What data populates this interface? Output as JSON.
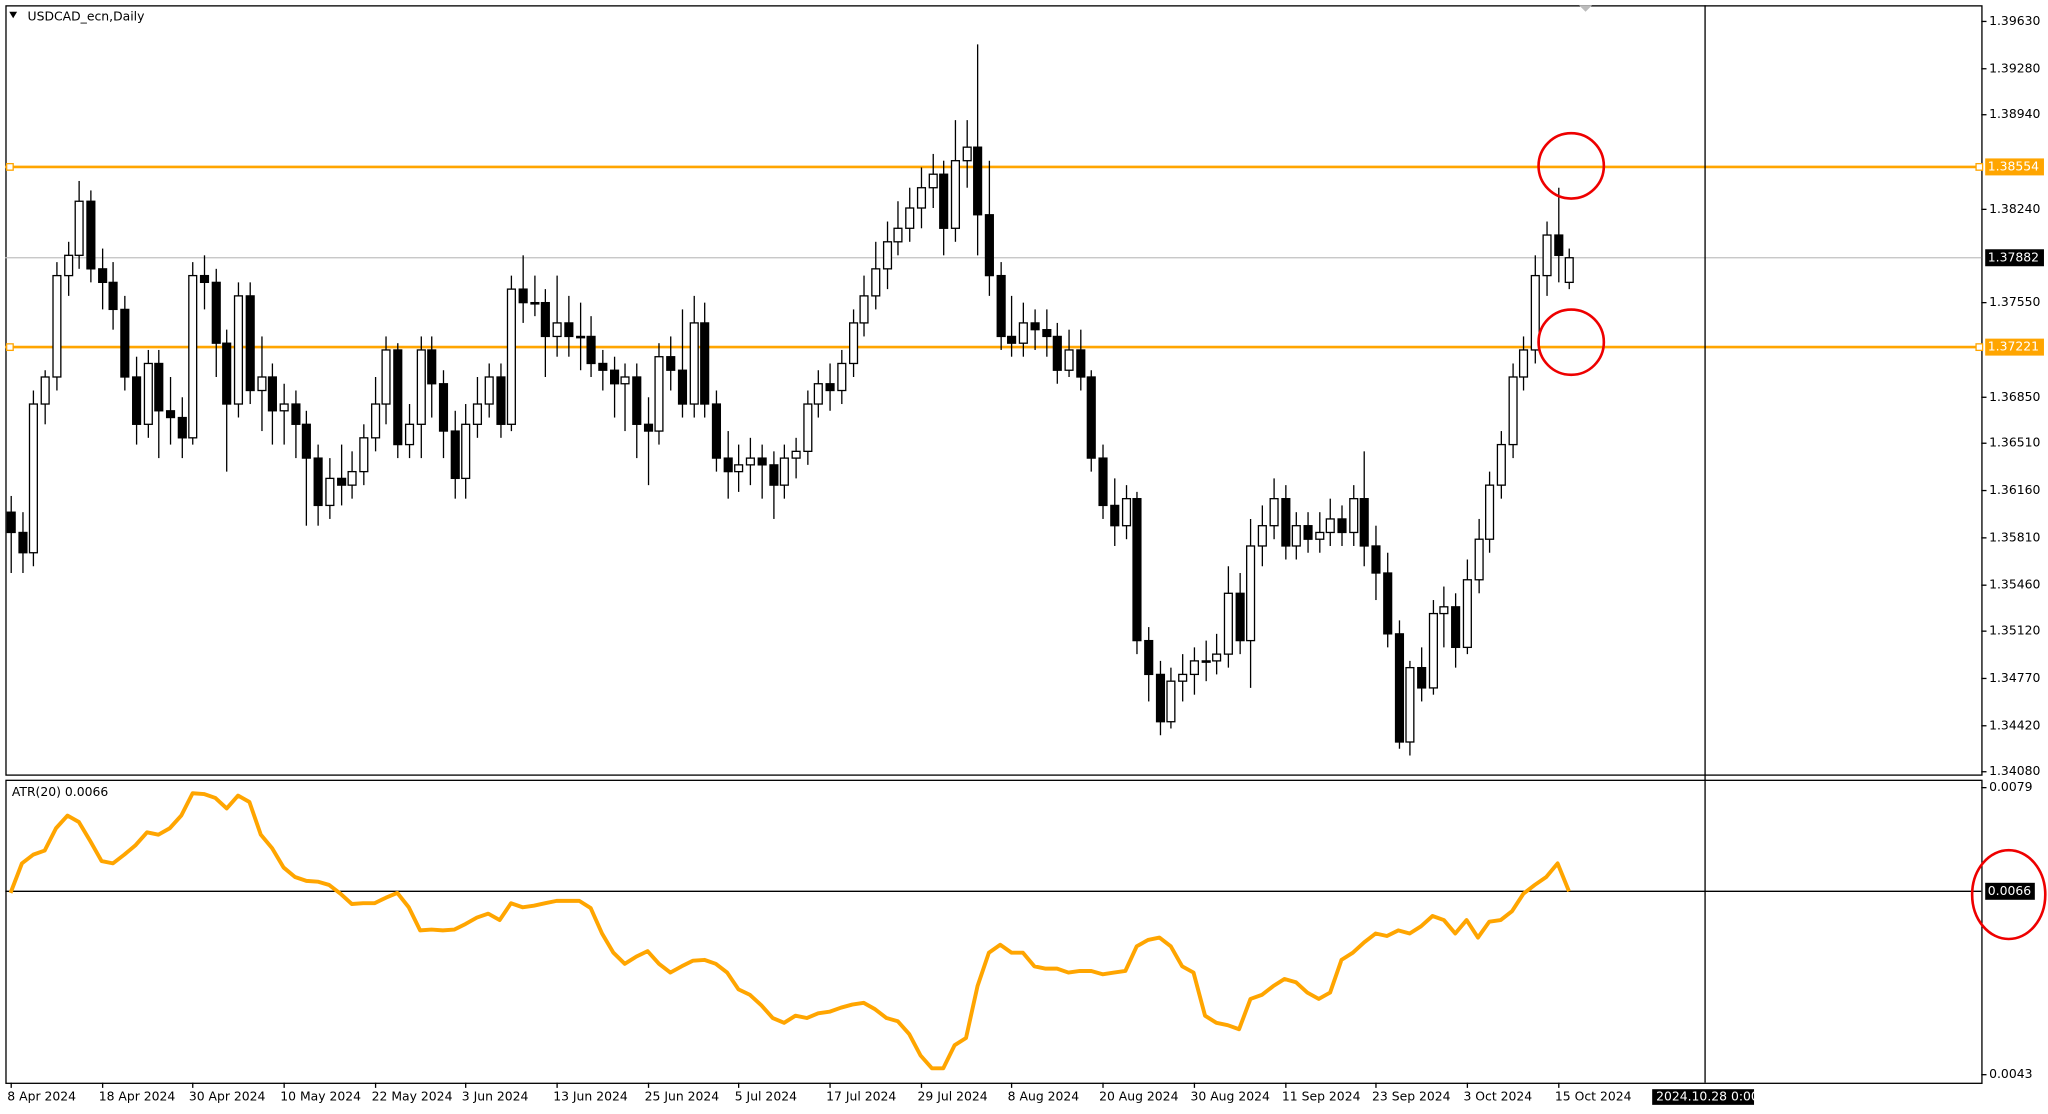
{
  "chart_data": [
    {
      "type": "candlestick",
      "title": "USDCAD_ecn,Daily",
      "x": [
        "8 Apr 2024",
        null,
        null,
        null,
        null,
        null,
        null,
        null,
        "18 Apr 2024",
        null,
        null,
        null,
        null,
        null,
        null,
        null,
        "30 Apr 2024",
        null,
        null,
        null,
        null,
        null,
        null,
        null,
        "10 May 2024",
        null,
        null,
        null,
        null,
        null,
        null,
        null,
        "22 May 2024",
        null,
        null,
        null,
        null,
        null,
        null,
        null,
        "3 Jun 2024",
        null,
        null,
        null,
        null,
        null,
        null,
        null,
        "13 Jun 2024",
        null,
        null,
        null,
        null,
        null,
        null,
        null,
        "25 Jun 2024",
        null,
        null,
        null,
        null,
        null,
        null,
        null,
        "5 Jul 2024",
        null,
        null,
        null,
        null,
        null,
        null,
        null,
        "17 Jul 2024",
        null,
        null,
        null,
        null,
        null,
        null,
        null,
        "29 Jul 2024",
        null,
        null,
        null,
        null,
        null,
        null,
        null,
        "8 Aug 2024",
        null,
        null,
        null,
        null,
        null,
        null,
        null,
        "20 Aug 2024",
        null,
        null,
        null,
        null,
        null,
        null,
        null,
        "30 Aug 2024",
        null,
        null,
        null,
        null,
        null,
        null,
        null,
        "11 Sep 2024",
        null,
        null,
        null,
        null,
        null,
        null,
        null,
        "23 Sep 2024",
        null,
        null,
        null,
        null,
        null,
        null,
        null,
        "3 Oct 2024",
        null,
        null,
        null,
        null,
        null,
        null,
        null,
        "15 Oct 2024",
        null
      ],
      "ohlc": [
        [
          1.36,
          1.3612,
          1.3555,
          1.3585
        ],
        [
          1.3585,
          1.36,
          1.3555,
          1.357
        ],
        [
          1.357,
          1.369,
          1.356,
          1.368
        ],
        [
          1.368,
          1.3705,
          1.3665,
          1.37
        ],
        [
          1.37,
          1.3785,
          1.369,
          1.3775
        ],
        [
          1.3775,
          1.38,
          1.376,
          1.379
        ],
        [
          1.379,
          1.3845,
          1.378,
          1.383
        ],
        [
          1.383,
          1.3838,
          1.377,
          1.378
        ],
        [
          1.378,
          1.3795,
          1.375,
          1.377
        ],
        [
          1.377,
          1.3785,
          1.3735,
          1.375
        ],
        [
          1.375,
          1.376,
          1.369,
          1.37
        ],
        [
          1.37,
          1.3715,
          1.365,
          1.3665
        ],
        [
          1.3665,
          1.372,
          1.3655,
          1.371
        ],
        [
          1.371,
          1.372,
          1.364,
          1.3675
        ],
        [
          1.3675,
          1.37,
          1.365,
          1.367
        ],
        [
          1.367,
          1.3685,
          1.364,
          1.3655
        ],
        [
          1.3655,
          1.3785,
          1.365,
          1.3775
        ],
        [
          1.3775,
          1.379,
          1.375,
          1.377
        ],
        [
          1.377,
          1.378,
          1.37,
          1.3725
        ],
        [
          1.3725,
          1.3735,
          1.363,
          1.368
        ],
        [
          1.368,
          1.377,
          1.367,
          1.376
        ],
        [
          1.376,
          1.377,
          1.368,
          1.369
        ],
        [
          1.369,
          1.373,
          1.366,
          1.37
        ],
        [
          1.37,
          1.371,
          1.365,
          1.3675
        ],
        [
          1.3675,
          1.3695,
          1.365,
          1.368
        ],
        [
          1.368,
          1.369,
          1.364,
          1.3665
        ],
        [
          1.3665,
          1.3675,
          1.359,
          1.364
        ],
        [
          1.364,
          1.365,
          1.359,
          1.3605
        ],
        [
          1.3605,
          1.364,
          1.3595,
          1.3625
        ],
        [
          1.3625,
          1.365,
          1.3605,
          1.362
        ],
        [
          1.362,
          1.3645,
          1.361,
          1.363
        ],
        [
          1.363,
          1.3665,
          1.362,
          1.3655
        ],
        [
          1.3655,
          1.37,
          1.3645,
          1.368
        ],
        [
          1.368,
          1.373,
          1.3665,
          1.372
        ],
        [
          1.372,
          1.3725,
          1.364,
          1.365
        ],
        [
          1.365,
          1.368,
          1.364,
          1.3665
        ],
        [
          1.3665,
          1.373,
          1.364,
          1.372
        ],
        [
          1.372,
          1.373,
          1.367,
          1.3695
        ],
        [
          1.3695,
          1.3705,
          1.364,
          1.366
        ],
        [
          1.366,
          1.3675,
          1.361,
          1.3625
        ],
        [
          1.3625,
          1.368,
          1.361,
          1.3665
        ],
        [
          1.3665,
          1.37,
          1.3655,
          1.368
        ],
        [
          1.368,
          1.371,
          1.367,
          1.37
        ],
        [
          1.37,
          1.371,
          1.3655,
          1.3665
        ],
        [
          1.3665,
          1.3775,
          1.366,
          1.3765
        ],
        [
          1.3765,
          1.379,
          1.374,
          1.3755
        ],
        [
          1.3755,
          1.3775,
          1.3745,
          1.3755
        ],
        [
          1.3755,
          1.3765,
          1.37,
          1.373
        ],
        [
          1.373,
          1.3775,
          1.3715,
          1.374
        ],
        [
          1.374,
          1.376,
          1.3715,
          1.373
        ],
        [
          1.373,
          1.3755,
          1.3705,
          1.373
        ],
        [
          1.373,
          1.3745,
          1.37,
          1.371
        ],
        [
          1.371,
          1.372,
          1.369,
          1.3705
        ],
        [
          1.3705,
          1.3715,
          1.367,
          1.3695
        ],
        [
          1.3695,
          1.371,
          1.366,
          1.37
        ],
        [
          1.37,
          1.371,
          1.364,
          1.3665
        ],
        [
          1.3665,
          1.3685,
          1.362,
          1.366
        ],
        [
          1.366,
          1.3725,
          1.365,
          1.3715
        ],
        [
          1.3715,
          1.373,
          1.369,
          1.3705
        ],
        [
          1.3705,
          1.375,
          1.367,
          1.368
        ],
        [
          1.368,
          1.376,
          1.367,
          1.374
        ],
        [
          1.374,
          1.3755,
          1.367,
          1.368
        ],
        [
          1.368,
          1.369,
          1.363,
          1.364
        ],
        [
          1.364,
          1.366,
          1.361,
          1.363
        ],
        [
          1.363,
          1.365,
          1.3615,
          1.3635
        ],
        [
          1.3635,
          1.3655,
          1.362,
          1.364
        ],
        [
          1.364,
          1.365,
          1.361,
          1.3635
        ],
        [
          1.3635,
          1.3645,
          1.3595,
          1.362
        ],
        [
          1.362,
          1.365,
          1.361,
          1.364
        ],
        [
          1.364,
          1.3655,
          1.3625,
          1.3645
        ],
        [
          1.3645,
          1.369,
          1.3635,
          1.368
        ],
        [
          1.368,
          1.3705,
          1.367,
          1.3695
        ],
        [
          1.3695,
          1.371,
          1.3675,
          1.369
        ],
        [
          1.369,
          1.372,
          1.368,
          1.371
        ],
        [
          1.371,
          1.375,
          1.37,
          1.374
        ],
        [
          1.374,
          1.3775,
          1.373,
          1.376
        ],
        [
          1.376,
          1.38,
          1.375,
          1.378
        ],
        [
          1.378,
          1.3815,
          1.3765,
          1.38
        ],
        [
          1.38,
          1.383,
          1.379,
          1.381
        ],
        [
          1.381,
          1.384,
          1.38,
          1.3825
        ],
        [
          1.3825,
          1.3855,
          1.381,
          1.384
        ],
        [
          1.384,
          1.3865,
          1.3825,
          1.385
        ],
        [
          1.385,
          1.386,
          1.379,
          1.381
        ],
        [
          1.381,
          1.389,
          1.38,
          1.386
        ],
        [
          1.386,
          1.389,
          1.384,
          1.387
        ],
        [
          1.387,
          1.3946,
          1.379,
          1.382
        ],
        [
          1.382,
          1.386,
          1.376,
          1.3775
        ],
        [
          1.3775,
          1.3785,
          1.372,
          1.373
        ],
        [
          1.373,
          1.376,
          1.3715,
          1.3725
        ],
        [
          1.3725,
          1.3755,
          1.3715,
          1.374
        ],
        [
          1.374,
          1.375,
          1.372,
          1.3735
        ],
        [
          1.3735,
          1.375,
          1.3715,
          1.373
        ],
        [
          1.373,
          1.374,
          1.3695,
          1.3705
        ],
        [
          1.3705,
          1.3735,
          1.37,
          1.372
        ],
        [
          1.372,
          1.3735,
          1.369,
          1.37
        ],
        [
          1.37,
          1.3705,
          1.363,
          1.364
        ],
        [
          1.364,
          1.365,
          1.3595,
          1.3605
        ],
        [
          1.3605,
          1.3625,
          1.3575,
          1.359
        ],
        [
          1.359,
          1.362,
          1.358,
          1.361
        ],
        [
          1.361,
          1.3615,
          1.3495,
          1.3505
        ],
        [
          1.3505,
          1.3515,
          1.346,
          1.348
        ],
        [
          1.348,
          1.349,
          1.3435,
          1.3445
        ],
        [
          1.3445,
          1.3485,
          1.344,
          1.3475
        ],
        [
          1.3475,
          1.3495,
          1.346,
          1.348
        ],
        [
          1.348,
          1.35,
          1.3465,
          1.349
        ],
        [
          1.349,
          1.3505,
          1.3475,
          1.349
        ],
        [
          1.349,
          1.351,
          1.348,
          1.3495
        ],
        [
          1.3495,
          1.356,
          1.3485,
          1.354
        ],
        [
          1.354,
          1.3555,
          1.3495,
          1.3505
        ],
        [
          1.3505,
          1.3595,
          1.347,
          1.3575
        ],
        [
          1.3575,
          1.3605,
          1.356,
          1.359
        ],
        [
          1.359,
          1.3625,
          1.358,
          1.361
        ],
        [
          1.361,
          1.362,
          1.3565,
          1.3575
        ],
        [
          1.3575,
          1.36,
          1.3565,
          1.359
        ],
        [
          1.359,
          1.36,
          1.357,
          1.358
        ],
        [
          1.358,
          1.36,
          1.357,
          1.3585
        ],
        [
          1.3585,
          1.361,
          1.3575,
          1.3595
        ],
        [
          1.3595,
          1.3605,
          1.3575,
          1.3585
        ],
        [
          1.3585,
          1.362,
          1.3575,
          1.361
        ],
        [
          1.361,
          1.3645,
          1.356,
          1.3575
        ],
        [
          1.3575,
          1.359,
          1.3535,
          1.3555
        ],
        [
          1.3555,
          1.357,
          1.35,
          1.351
        ],
        [
          1.351,
          1.352,
          1.3425,
          1.343
        ],
        [
          1.343,
          1.349,
          1.342,
          1.3485
        ],
        [
          1.3485,
          1.35,
          1.346,
          1.347
        ],
        [
          1.347,
          1.3535,
          1.3465,
          1.3525
        ],
        [
          1.3525,
          1.3545,
          1.35,
          1.353
        ],
        [
          1.353,
          1.354,
          1.3485,
          1.35
        ],
        [
          1.35,
          1.3565,
          1.3495,
          1.355
        ],
        [
          1.355,
          1.3595,
          1.354,
          1.358
        ],
        [
          1.358,
          1.363,
          1.357,
          1.362
        ],
        [
          1.362,
          1.366,
          1.361,
          1.365
        ],
        [
          1.365,
          1.371,
          1.364,
          1.37
        ],
        [
          1.37,
          1.373,
          1.369,
          1.372
        ],
        [
          1.372,
          1.379,
          1.371,
          1.3775
        ],
        [
          1.3775,
          1.3815,
          1.376,
          1.3805
        ],
        [
          1.3805,
          1.384,
          1.377,
          1.379
        ],
        [
          1.377,
          1.3795,
          1.3765,
          1.37882
        ]
      ],
      "ylim": [
        1.3406,
        1.3975
      ],
      "yticks": [
        {
          "value": 1.3963,
          "label": "1.39630"
        },
        {
          "value": 1.3928,
          "label": "1.39280"
        },
        {
          "value": 1.3894,
          "label": "1.38940"
        },
        {
          "value": 1.3824,
          "label": "1.38240"
        },
        {
          "value": 1.3755,
          "label": "1.37550"
        },
        {
          "value": 1.3685,
          "label": "1.36850"
        },
        {
          "value": 1.3651,
          "label": "1.36510"
        },
        {
          "value": 1.3616,
          "label": "1.36160"
        },
        {
          "value": 1.3581,
          "label": "1.35810"
        },
        {
          "value": 1.3546,
          "label": "1.35460"
        },
        {
          "value": 1.3512,
          "label": "1.35120"
        },
        {
          "value": 1.3477,
          "label": "1.34770"
        },
        {
          "value": 1.3442,
          "label": "1.34420"
        },
        {
          "value": 1.3408,
          "label": "1.34080"
        }
      ],
      "hlines": [
        {
          "value": 1.38554,
          "color": "#ffa500"
        },
        {
          "value": 1.37221,
          "color": "#ffa500"
        }
      ],
      "last_price": 1.37882,
      "crosshair_label": "2024.10.28 0:00"
    },
    {
      "type": "line",
      "title": "ATR(20) 0.0066",
      "color": "#ffa500",
      "values": [
        0.00658,
        0.00695,
        0.00706,
        0.00711,
        0.00739,
        0.00755,
        0.00747,
        0.00723,
        0.00698,
        0.00695,
        0.00706,
        0.00718,
        0.00734,
        0.00731,
        0.00739,
        0.00755,
        0.00783,
        0.00782,
        0.00777,
        0.00764,
        0.0078,
        0.00772,
        0.00731,
        0.00714,
        0.0069,
        0.00678,
        0.00673,
        0.00672,
        0.00668,
        0.00657,
        0.00644,
        0.00645,
        0.00645,
        0.00652,
        0.00658,
        0.0064,
        0.00611,
        0.00612,
        0.00611,
        0.00612,
        0.00619,
        0.00627,
        0.00632,
        0.00624,
        0.00645,
        0.0064,
        0.00642,
        0.00645,
        0.00648,
        0.00648,
        0.00648,
        0.00639,
        0.00607,
        0.00583,
        0.00569,
        0.00578,
        0.00585,
        0.00569,
        0.00558,
        0.00566,
        0.00573,
        0.00574,
        0.00569,
        0.00558,
        0.00537,
        0.0053,
        0.00517,
        0.00501,
        0.00495,
        0.00504,
        0.00501,
        0.00507,
        0.00509,
        0.00514,
        0.00518,
        0.0052,
        0.00512,
        0.00501,
        0.00497,
        0.00481,
        0.00454,
        0.00438,
        0.00438,
        0.00467,
        0.00476,
        0.00541,
        0.00583,
        0.00593,
        0.00583,
        0.00583,
        0.00566,
        0.00563,
        0.00563,
        0.00558,
        0.0056,
        0.0056,
        0.00556,
        0.00558,
        0.0056,
        0.00591,
        0.00599,
        0.00602,
        0.00591,
        0.00566,
        0.00558,
        0.00504,
        0.00495,
        0.00492,
        0.00487,
        0.00525,
        0.0053,
        0.00541,
        0.0055,
        0.00546,
        0.00533,
        0.00525,
        0.00533,
        0.00574,
        0.00583,
        0.00596,
        0.00607,
        0.00604,
        0.00611,
        0.00607,
        0.00616,
        0.00629,
        0.00624,
        0.00607,
        0.00624,
        0.00602,
        0.00622,
        0.00624,
        0.00635,
        0.00657,
        0.00668,
        0.00678,
        0.00695,
        0.0066
      ],
      "ylim": [
        0.0042,
        0.008
      ],
      "yticks": [
        0.0079,
        0.0043
      ],
      "last_value": 0.0066
    }
  ]
}
